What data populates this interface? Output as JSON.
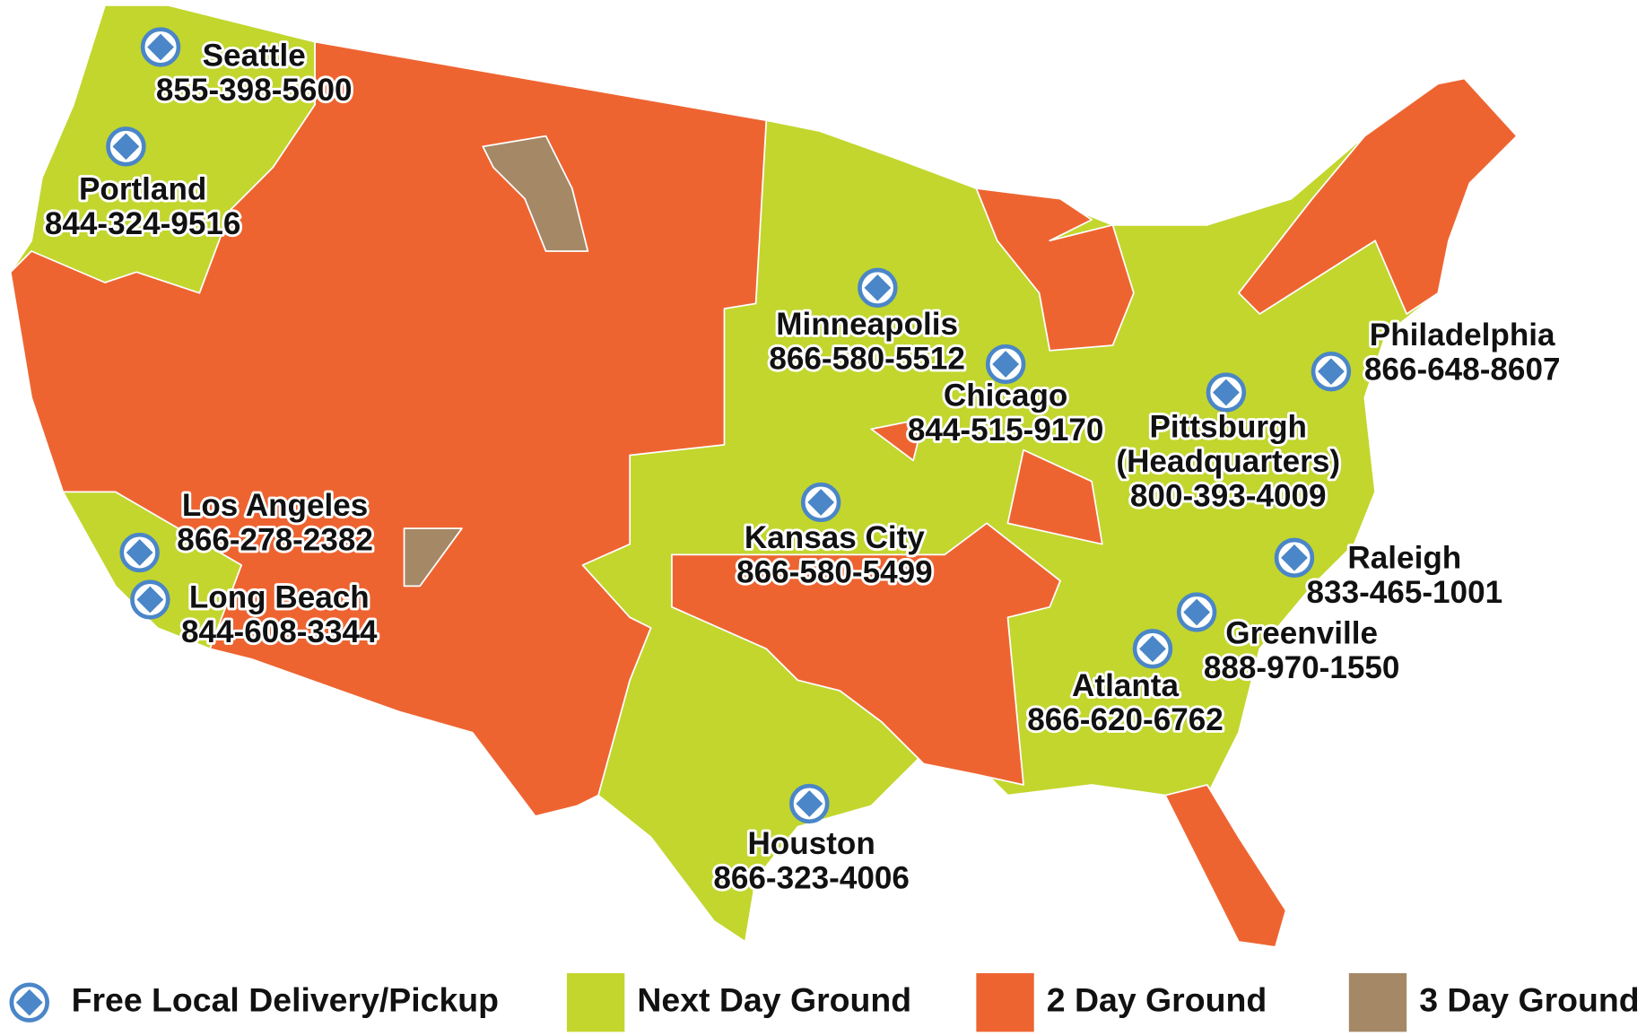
{
  "locations": [
    {
      "name": "Seattle",
      "phone": "855-398-5600"
    },
    {
      "name": "Portland",
      "phone": "844-324-9516"
    },
    {
      "name": "Minneapolis",
      "phone": "866-580-5512"
    },
    {
      "name": "Chicago",
      "phone": "844-515-9170"
    },
    {
      "name": "Philadelphia",
      "phone": "866-648-8607"
    },
    {
      "name": "Pittsburgh",
      "note": "(Headquarters)",
      "phone": "800-393-4009"
    },
    {
      "name": "Los Angeles",
      "phone": "866-278-2382"
    },
    {
      "name": "Long Beach",
      "phone": "844-608-3344"
    },
    {
      "name": "Kansas City",
      "phone": "866-580-5499"
    },
    {
      "name": "Raleigh",
      "phone": "833-465-1001"
    },
    {
      "name": "Greenville",
      "phone": "888-970-1550"
    },
    {
      "name": "Atlanta",
      "phone": "866-620-6762"
    },
    {
      "name": "Houston",
      "phone": "866-323-4006"
    }
  ],
  "legend": [
    {
      "label": "Free Local Delivery/Pickup",
      "color": "#4a86c8"
    },
    {
      "label": "Next Day Ground",
      "color": "#c2d62e"
    },
    {
      "label": "2 Day Ground",
      "color": "#ee6431"
    },
    {
      "label": "3 Day Ground",
      "color": "#a58866"
    }
  ]
}
